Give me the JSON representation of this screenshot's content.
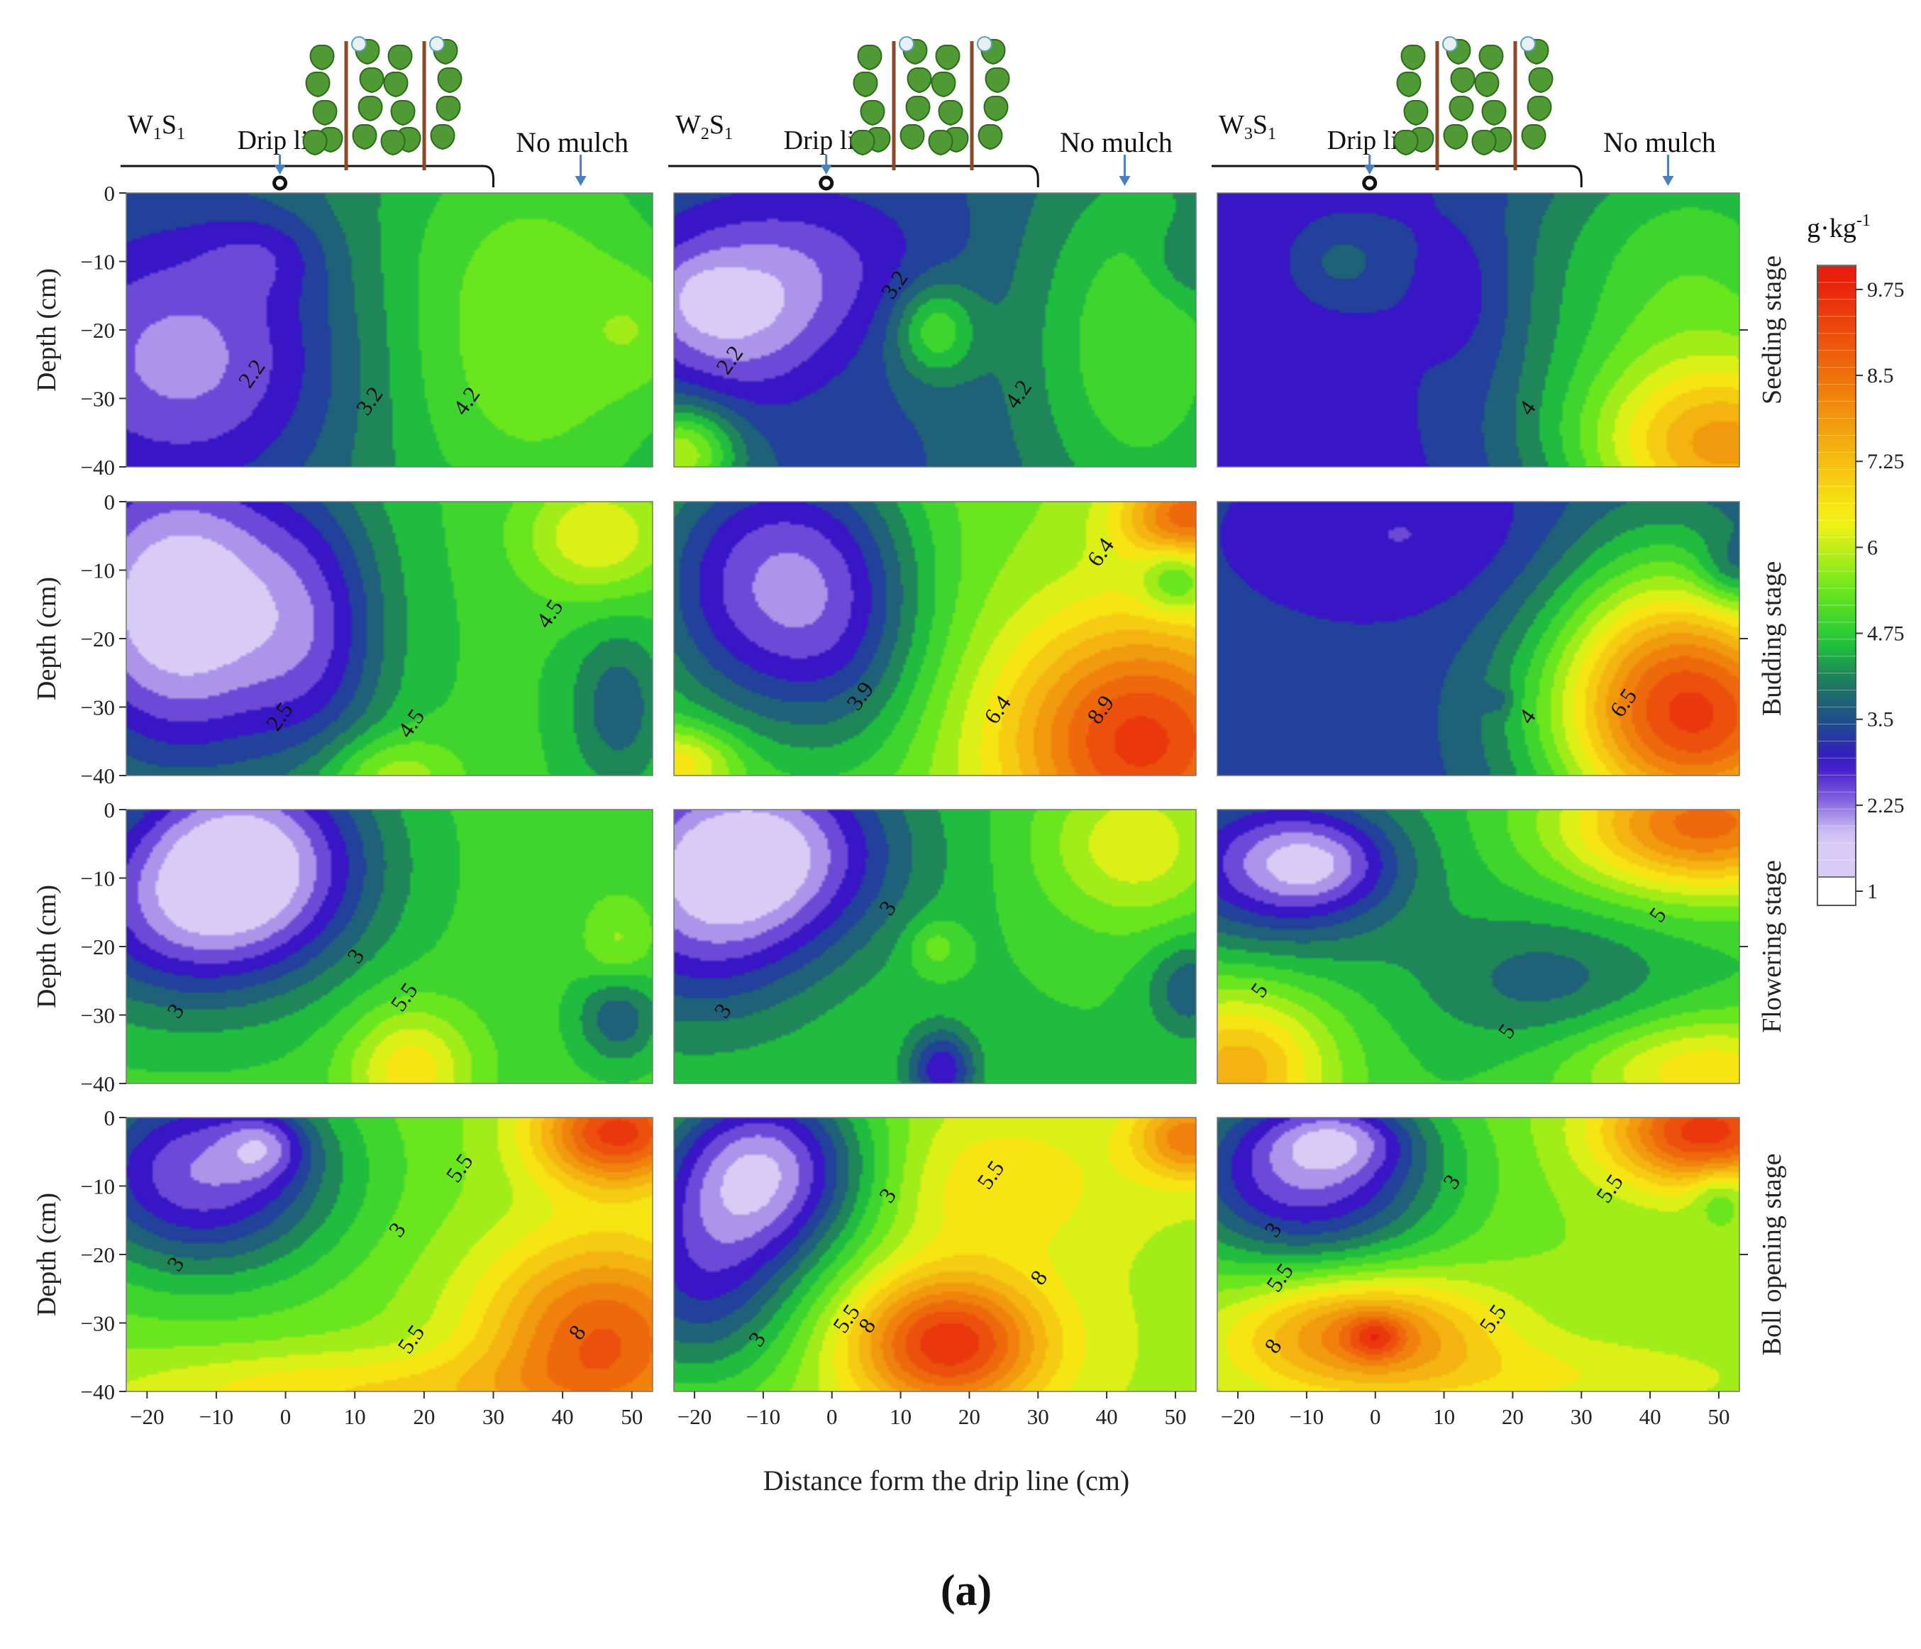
{
  "chart_data": {
    "type": "heatmap",
    "title": "",
    "caption": "(a)",
    "xlabel": "Distance form the drip line (cm)",
    "ylabel": "Depth (cm)",
    "xlim": [
      -23,
      53
    ],
    "ylim": [
      -40,
      0
    ],
    "x_ticks": [
      "−20",
      "−10",
      "0",
      "10",
      "20",
      "30",
      "40",
      "50"
    ],
    "y_ticks": [
      "0",
      "−10",
      "−20",
      "−30",
      "−40"
    ],
    "header": {
      "drip_label": "Drip line",
      "nomulch_label": "No mulch",
      "treatments": [
        {
          "base": "W",
          "sub1": "1",
          "mid": "S",
          "sub2": "1"
        },
        {
          "base": "W",
          "sub1": "2",
          "mid": "S",
          "sub2": "1"
        },
        {
          "base": "W",
          "sub1": "3",
          "mid": "S",
          "sub2": "1"
        }
      ]
    },
    "stages": [
      "Seeding stage",
      "Budding stage",
      "Flowering stage",
      "Boll opening stage"
    ],
    "colorbar": {
      "unit_base": "g·kg",
      "unit_sup": "-1",
      "min": 1,
      "max": 10.1,
      "labels": [
        "9.75",
        "8.5",
        "7.25",
        "6",
        "4.75",
        "3.5",
        "2.25",
        "1"
      ],
      "label_values": [
        9.75,
        8.5,
        7.25,
        6,
        4.75,
        3.5,
        2.25,
        1
      ],
      "colors": {
        "lavender": "#d8ccf6",
        "violet": "#7b58dd",
        "indigo": "#3a12c8",
        "navy": "#1e4696",
        "teal": "#1e7a5e",
        "green": "#1fc83a",
        "lime": "#6ee81c",
        "yellow": "#f8f214",
        "orange": "#f07a0c",
        "red": "#e81e0c"
      }
    },
    "panels": [
      {
        "row": 0,
        "col": 0,
        "bg": 3.7,
        "blobs": [
          {
            "x": -14,
            "y": -24,
            "rx": 24,
            "ry": 20,
            "v": -1.8
          },
          {
            "x": -3,
            "y": -9,
            "rx": 9,
            "ry": 6,
            "v": -0.6
          },
          {
            "x": 35,
            "y": -20,
            "rx": 26,
            "ry": 34,
            "v": 1.7
          },
          {
            "x": 52,
            "y": -20,
            "rx": 8,
            "ry": 9,
            "v": 0.6
          }
        ],
        "labels": [
          {
            "t": "2.2",
            "x": -4,
            "y": -27
          },
          {
            "t": "3.2",
            "x": 13,
            "y": -31
          },
          {
            "t": "4.2",
            "x": 27,
            "y": -31
          }
        ]
      },
      {
        "row": 0,
        "col": 1,
        "bg": 3.3,
        "blobs": [
          {
            "x": -14,
            "y": -18,
            "rx": 14,
            "ry": 12,
            "v": -1.5
          },
          {
            "x": -20,
            "y": -15,
            "rx": 6,
            "ry": 6,
            "v": -0.5
          },
          {
            "x": -2,
            "y": -10,
            "rx": 18,
            "ry": 11,
            "v": -0.7
          },
          {
            "x": -22,
            "y": -38,
            "rx": 8,
            "ry": 7,
            "v": 2.5
          },
          {
            "x": 15,
            "y": -20,
            "rx": 6,
            "ry": 7,
            "v": 1.6
          },
          {
            "x": 45,
            "y": -22,
            "rx": 18,
            "ry": 30,
            "v": 1.7
          },
          {
            "x": 52,
            "y": -10,
            "rx": 6,
            "ry": 6,
            "v": -0.7
          }
        ],
        "labels": [
          {
            "t": "2.2",
            "x": -14,
            "y": -25
          },
          {
            "t": "3.2",
            "x": 10,
            "y": -14
          },
          {
            "t": "4.2",
            "x": 28,
            "y": -30
          }
        ]
      },
      {
        "row": 0,
        "col": 2,
        "bg": 2.7,
        "blobs": [
          {
            "x": -5,
            "y": -10,
            "rx": 7,
            "ry": 6,
            "v": 0.7
          },
          {
            "x": 14,
            "y": -15,
            "rx": 7,
            "ry": 12,
            "v": -0.5
          },
          {
            "x": 46,
            "y": -15,
            "rx": 28,
            "ry": 30,
            "v": 2.3
          },
          {
            "x": 52,
            "y": -38,
            "rx": 22,
            "ry": 13,
            "v": 3.8
          }
        ],
        "labels": [
          {
            "t": "4",
            "x": 23,
            "y": -32
          }
        ]
      },
      {
        "row": 1,
        "col": 0,
        "bg": 4.7,
        "blobs": [
          {
            "x": -15,
            "y": -15,
            "rx": 20,
            "ry": 24,
            "v": -3.6
          },
          {
            "x": 5,
            "y": -20,
            "rx": 10,
            "ry": 20,
            "v": -1.2
          },
          {
            "x": 45,
            "y": -5,
            "rx": 11,
            "ry": 9,
            "v": 1.6
          },
          {
            "x": 48,
            "y": -30,
            "rx": 7,
            "ry": 12,
            "v": -1.2
          },
          {
            "x": 15,
            "y": -40,
            "rx": 10,
            "ry": 6,
            "v": 1.2
          }
        ],
        "labels": [
          {
            "t": "2.5",
            "x": 0,
            "y": -32
          },
          {
            "t": "4.5",
            "x": 19,
            "y": -33
          },
          {
            "t": "4.5",
            "x": 39,
            "y": -17
          }
        ]
      },
      {
        "row": 1,
        "col": 1,
        "bg": 5.4,
        "blobs": [
          {
            "x": -10,
            "y": -12,
            "rx": 19,
            "ry": 22,
            "v": -3.1
          },
          {
            "x": 3,
            "y": -18,
            "rx": 12,
            "ry": 22,
            "v": -1.0
          },
          {
            "x": 45,
            "y": -35,
            "rx": 20,
            "ry": 18,
            "v": 4.0
          },
          {
            "x": 52,
            "y": -2,
            "rx": 10,
            "ry": 7,
            "v": 3.2
          },
          {
            "x": 50,
            "y": -11,
            "rx": 5,
            "ry": 5,
            "v": -1.4
          },
          {
            "x": -22,
            "y": -38,
            "rx": 8,
            "ry": 5,
            "v": 1.6
          }
        ],
        "labels": [
          {
            "t": "3.9",
            "x": 5,
            "y": -29
          },
          {
            "t": "6.4",
            "x": 25,
            "y": -31
          },
          {
            "t": "8.9",
            "x": 40,
            "y": -31
          },
          {
            "t": "6.4",
            "x": 40,
            "y": -8
          }
        ]
      },
      {
        "row": 1,
        "col": 2,
        "bg": 3.1,
        "blobs": [
          {
            "x": 5,
            "y": -5,
            "rx": 24,
            "ry": 12,
            "v": -0.6
          },
          {
            "x": 48,
            "y": -32,
            "rx": 22,
            "ry": 18,
            "v": 5.4
          },
          {
            "x": 40,
            "y": -20,
            "rx": 16,
            "ry": 22,
            "v": 1.4
          },
          {
            "x": 52,
            "y": -10,
            "rx": 5,
            "ry": 5,
            "v": -1.0
          },
          {
            "x": 18,
            "y": -29,
            "rx": 2,
            "ry": 2,
            "v": -0.5
          }
        ],
        "labels": [
          {
            "t": "4",
            "x": 23,
            "y": -32
          },
          {
            "t": "6.5",
            "x": 37,
            "y": -30
          }
        ]
      },
      {
        "row": 2,
        "col": 0,
        "bg": 4.8,
        "blobs": [
          {
            "x": -6,
            "y": -8,
            "rx": 18,
            "ry": 16,
            "v": -3.6
          },
          {
            "x": -20,
            "y": -17,
            "rx": 18,
            "ry": 14,
            "v": -1.2
          },
          {
            "x": 18,
            "y": -38,
            "rx": 9,
            "ry": 9,
            "v": 1.8
          },
          {
            "x": 48,
            "y": -20,
            "rx": 5,
            "ry": 7,
            "v": 0.8
          },
          {
            "x": 48,
            "y": -30,
            "rx": 6,
            "ry": 7,
            "v": -1.4
          }
        ],
        "labels": [
          {
            "t": "3",
            "x": -15,
            "y": -30
          },
          {
            "t": "3",
            "x": 11,
            "y": -22
          },
          {
            "t": "5.5",
            "x": 18,
            "y": -28
          }
        ]
      },
      {
        "row": 2,
        "col": 1,
        "bg": 4.6,
        "blobs": [
          {
            "x": -12,
            "y": -6,
            "rx": 20,
            "ry": 14,
            "v": -3.3
          },
          {
            "x": -20,
            "y": -20,
            "rx": 18,
            "ry": 14,
            "v": -1.3
          },
          {
            "x": 16,
            "y": -38,
            "rx": 5,
            "ry": 6,
            "v": -2.0
          },
          {
            "x": 44,
            "y": -5,
            "rx": 14,
            "ry": 12,
            "v": 1.6
          },
          {
            "x": 52,
            "y": -26,
            "rx": 6,
            "ry": 7,
            "v": -1.2
          },
          {
            "x": 15,
            "y": -20,
            "rx": 4,
            "ry": 4,
            "v": 0.8
          }
        ],
        "labels": [
          {
            "t": "3",
            "x": -15,
            "y": -30
          },
          {
            "t": "3",
            "x": 9,
            "y": -15
          }
        ]
      },
      {
        "row": 2,
        "col": 2,
        "bg": 4.6,
        "blobs": [
          {
            "x": -14,
            "y": -8,
            "rx": 18,
            "ry": 12,
            "v": -2.4
          },
          {
            "x": -8,
            "y": -8,
            "rx": 10,
            "ry": 6,
            "v": -1.0
          },
          {
            "x": 48,
            "y": -2,
            "rx": 20,
            "ry": 10,
            "v": 4.0
          },
          {
            "x": -20,
            "y": -38,
            "rx": 14,
            "ry": 12,
            "v": 2.8
          },
          {
            "x": 48,
            "y": -38,
            "rx": 20,
            "ry": 8,
            "v": 2.0
          },
          {
            "x": 25,
            "y": -25,
            "rx": 18,
            "ry": 10,
            "v": -1.0
          }
        ],
        "labels": [
          {
            "t": "5",
            "x": -16,
            "y": -27
          },
          {
            "t": "5",
            "x": 20,
            "y": -33
          },
          {
            "t": "5",
            "x": 42,
            "y": -16
          }
        ]
      },
      {
        "row": 3,
        "col": 0,
        "bg": 5.4,
        "blobs": [
          {
            "x": -12,
            "y": -8,
            "rx": 20,
            "ry": 15,
            "v": -3.3
          },
          {
            "x": -3,
            "y": -4,
            "rx": 6,
            "ry": 5,
            "v": -1.2
          },
          {
            "x": 46,
            "y": -32,
            "rx": 18,
            "ry": 15,
            "v": 3.4
          },
          {
            "x": 48,
            "y": -2,
            "rx": 12,
            "ry": 8,
            "v": 4.0
          },
          {
            "x": 10,
            "y": -40,
            "rx": 35,
            "ry": 6,
            "v": 1.3
          }
        ],
        "labels": [
          {
            "t": "3",
            "x": -15,
            "y": -22
          },
          {
            "t": "3",
            "x": 17,
            "y": -17
          },
          {
            "t": "5.5",
            "x": 26,
            "y": -8
          },
          {
            "t": "5.5",
            "x": 19,
            "y": -33
          },
          {
            "t": "8",
            "x": 43,
            "y": -32
          }
        ]
      },
      {
        "row": 3,
        "col": 1,
        "bg": 5.8,
        "blobs": [
          {
            "x": -10,
            "y": -7,
            "rx": 16,
            "ry": 14,
            "v": -3.8
          },
          {
            "x": -20,
            "y": -25,
            "rx": 16,
            "ry": 16,
            "v": -2.5
          },
          {
            "x": 17,
            "y": -33,
            "rx": 14,
            "ry": 10,
            "v": 3.8
          },
          {
            "x": 52,
            "y": -3,
            "rx": 8,
            "ry": 6,
            "v": 2.5
          },
          {
            "x": 24,
            "y": -10,
            "rx": 16,
            "ry": 10,
            "v": 0.9
          }
        ],
        "labels": [
          {
            "t": "3",
            "x": -10,
            "y": -33
          },
          {
            "t": "3",
            "x": 9,
            "y": -12
          },
          {
            "t": "5.5",
            "x": 3,
            "y": -30
          },
          {
            "t": "8",
            "x": 6,
            "y": -31
          },
          {
            "t": "5.5",
            "x": 24,
            "y": -9
          },
          {
            "t": "8",
            "x": 31,
            "y": -24
          }
        ]
      },
      {
        "row": 3,
        "col": 2,
        "bg": 5.5,
        "blobs": [
          {
            "x": -10,
            "y": -8,
            "rx": 20,
            "ry": 14,
            "v": -3.4
          },
          {
            "x": -5,
            "y": -3,
            "rx": 10,
            "ry": 5,
            "v": -1.2
          },
          {
            "x": -2,
            "y": -31,
            "rx": 18,
            "ry": 8,
            "v": 2.8
          },
          {
            "x": 0,
            "y": -32,
            "rx": 4,
            "ry": 3,
            "v": 1.4
          },
          {
            "x": 48,
            "y": -2,
            "rx": 14,
            "ry": 8,
            "v": 4.0
          },
          {
            "x": 50,
            "y": -11,
            "rx": 4,
            "ry": 4,
            "v": -1.0
          },
          {
            "x": 20,
            "y": -38,
            "rx": 35,
            "ry": 6,
            "v": 0.8
          }
        ],
        "labels": [
          {
            "t": "3",
            "x": -14,
            "y": -17
          },
          {
            "t": "3",
            "x": 12,
            "y": -10
          },
          {
            "t": "5.5",
            "x": -13,
            "y": -24
          },
          {
            "t": "8",
            "x": -14,
            "y": -34
          },
          {
            "t": "5.5",
            "x": 18,
            "y": -30
          },
          {
            "t": "5.5",
            "x": 35,
            "y": -11
          }
        ]
      }
    ]
  }
}
